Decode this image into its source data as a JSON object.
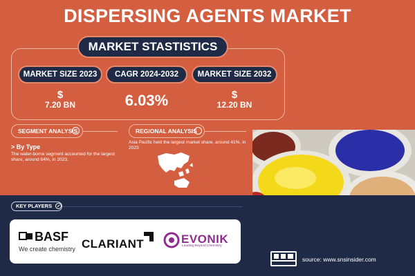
{
  "title": "DISPERSING AGENTS MARKET",
  "stats": {
    "header": "MARKET STASTISTICS",
    "size_2023_label": "MARKET SIZE 2023",
    "size_2023_currency": "$",
    "size_2023_value": "7.20 BN",
    "cagr_label": "CAGR 2024-2032",
    "cagr_value": "6.03%",
    "size_2032_label": "MARKET SIZE 2032",
    "size_2032_currency": "$",
    "size_2032_value": "12.20 BN"
  },
  "segment": {
    "label": "SEGMENT ANALYSIS",
    "heading": "> By Type",
    "description": "The water-borne segment accounted for the largest share, around 64%, in 2023."
  },
  "regional": {
    "label": "REGIONAL ANALYSIS",
    "description": "Asia Pacific held the largest market share, around 41%, in 2023"
  },
  "players": {
    "label": "KEY PLAYERS",
    "basf": "BASF",
    "basf_tagline": "We create chemistry",
    "clariant": "CLARIANT",
    "evonik": "EVONIK",
    "evonik_tagline": "Leading Beyond Chemistry"
  },
  "source": "source: www.snsinsider.com",
  "sns_logo_text": "SNS INSIDER Strategy & Stats",
  "colors": {
    "background": "#d35e40",
    "navy": "#1f2b46",
    "evonik_purple": "#8e2d8f"
  },
  "icons": [
    "globe-icon",
    "key-icon",
    "asia-map-icon"
  ]
}
